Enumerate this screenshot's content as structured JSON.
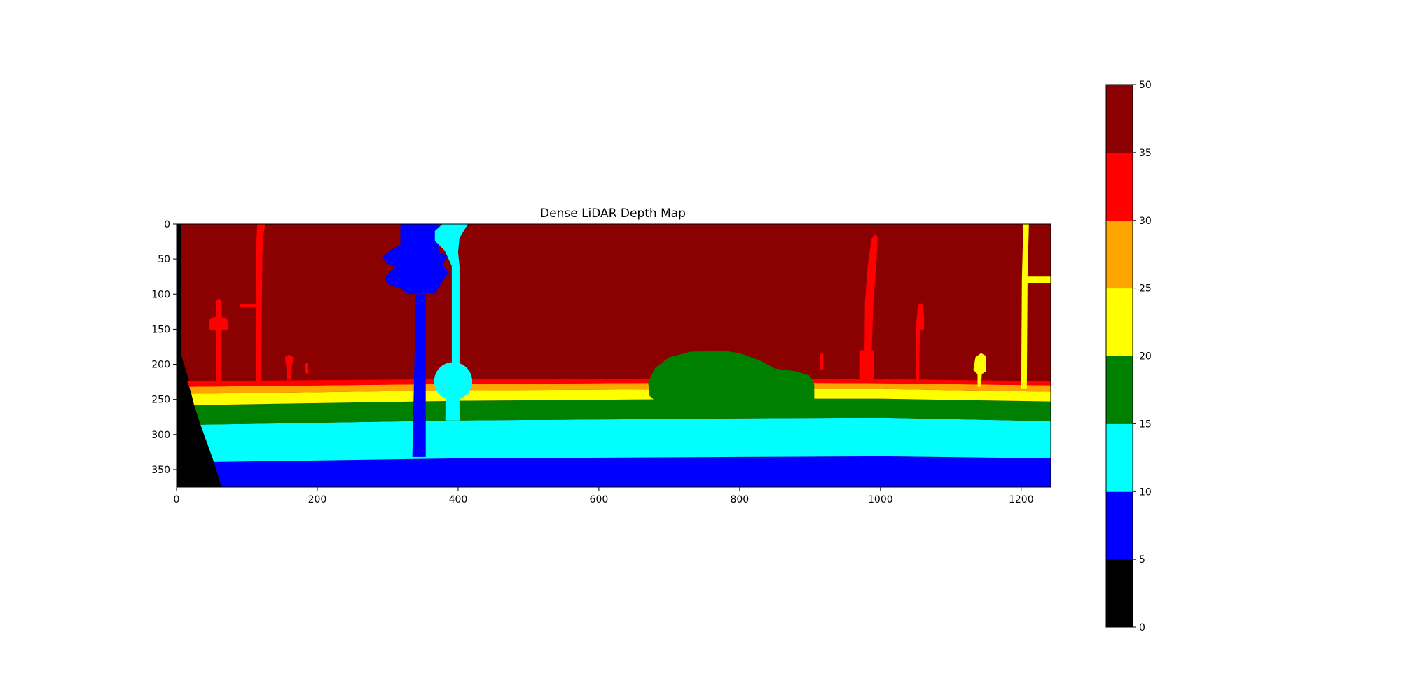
{
  "chart_data": {
    "type": "heatmap",
    "title": "Dense LiDAR Depth Map",
    "image_width": 1242,
    "image_height": 375,
    "xlim": [
      0,
      1242
    ],
    "ylim": [
      375,
      0
    ],
    "x_ticks": [
      0,
      200,
      400,
      600,
      800,
      1000,
      1200
    ],
    "y_ticks": [
      0,
      50,
      100,
      150,
      200,
      250,
      300,
      350
    ],
    "grid": false,
    "colorbar": {
      "boundaries": [
        0,
        5,
        10,
        15,
        20,
        25,
        30,
        35,
        50
      ],
      "tick_labels": [
        "0",
        "5",
        "10",
        "15",
        "20",
        "25",
        "30",
        "35",
        "50"
      ],
      "colors": [
        "#000000",
        "#0000ff",
        "#00ffff",
        "#008000",
        "#ffff00",
        "#ffa500",
        "#ff0000",
        "#8b0000"
      ]
    },
    "bands": [
      {
        "label": "ground 0-5",
        "color": "#000000",
        "polygon": [
          [
            0,
            0
          ],
          [
            6,
            0
          ],
          [
            6,
            185
          ],
          [
            64,
            375
          ],
          [
            0,
            375
          ]
        ]
      },
      {
        "label": "ground 5-10",
        "color": "#0000ff",
        "polygon": [
          [
            53,
            339
          ],
          [
            400,
            334
          ],
          [
            800,
            332
          ],
          [
            1000,
            331
          ],
          [
            1242,
            334
          ],
          [
            1242,
            375
          ],
          [
            64,
            375
          ]
        ]
      },
      {
        "label": "ground 10-15",
        "color": "#00ffff",
        "polygon": [
          [
            34,
            286
          ],
          [
            400,
            280
          ],
          [
            800,
            277
          ],
          [
            1000,
            276
          ],
          [
            1242,
            281
          ],
          [
            1242,
            334
          ],
          [
            1000,
            331
          ],
          [
            800,
            332
          ],
          [
            400,
            334
          ],
          [
            53,
            339
          ]
        ]
      },
      {
        "label": "ground 15-20",
        "color": "#008000",
        "polygon": [
          [
            25,
            258
          ],
          [
            400,
            252
          ],
          [
            800,
            249
          ],
          [
            1000,
            249
          ],
          [
            1242,
            253
          ],
          [
            1242,
            281
          ],
          [
            1000,
            276
          ],
          [
            800,
            277
          ],
          [
            400,
            280
          ],
          [
            34,
            286
          ]
        ]
      },
      {
        "label": "ground 20-25",
        "color": "#ffff00",
        "polygon": [
          [
            21,
            242
          ],
          [
            400,
            237
          ],
          [
            800,
            235
          ],
          [
            1000,
            235
          ],
          [
            1242,
            239
          ],
          [
            1242,
            253
          ],
          [
            1000,
            249
          ],
          [
            800,
            249
          ],
          [
            400,
            252
          ],
          [
            25,
            258
          ]
        ]
      },
      {
        "label": "ground 25-30",
        "color": "#ffa500",
        "polygon": [
          [
            18,
            232
          ],
          [
            400,
            228
          ],
          [
            800,
            226
          ],
          [
            1000,
            227
          ],
          [
            1242,
            230
          ],
          [
            1242,
            239
          ],
          [
            1000,
            235
          ],
          [
            800,
            235
          ],
          [
            400,
            237
          ],
          [
            21,
            242
          ]
        ]
      },
      {
        "label": "ground 30-35",
        "color": "#ff0000",
        "polygon": [
          [
            15,
            224
          ],
          [
            400,
            221
          ],
          [
            800,
            220
          ],
          [
            1000,
            221
          ],
          [
            1242,
            224
          ],
          [
            1242,
            230
          ],
          [
            1000,
            227
          ],
          [
            800,
            226
          ],
          [
            400,
            228
          ],
          [
            18,
            232
          ]
        ]
      }
    ],
    "objects": [
      {
        "label": "car",
        "color": "#008000",
        "polygon": [
          [
            672,
            245
          ],
          [
            670,
            225
          ],
          [
            680,
            205
          ],
          [
            700,
            190
          ],
          [
            730,
            182
          ],
          [
            780,
            181
          ],
          [
            800,
            184
          ],
          [
            830,
            195
          ],
          [
            850,
            206
          ],
          [
            880,
            210
          ],
          [
            900,
            216
          ],
          [
            906,
            228
          ],
          [
            906,
            251
          ],
          [
            880,
            253
          ],
          [
            740,
            254
          ],
          [
            680,
            252
          ]
        ]
      },
      {
        "label": "traffic light pole",
        "color": "#0000ff",
        "polygon": [
          [
            340,
            100
          ],
          [
            354,
            100
          ],
          [
            354,
            332
          ],
          [
            335,
            332
          ]
        ]
      },
      {
        "label": "traffic light head",
        "color": "#0000ff",
        "polygon": [
          [
            318,
            0
          ],
          [
            372,
            0
          ],
          [
            372,
            40
          ],
          [
            385,
            45
          ],
          [
            378,
            60
          ],
          [
            388,
            68
          ],
          [
            380,
            78
          ],
          [
            368,
            98
          ],
          [
            330,
            100
          ],
          [
            318,
            92
          ],
          [
            300,
            86
          ],
          [
            296,
            76
          ],
          [
            303,
            68
          ],
          [
            312,
            62
          ],
          [
            298,
            56
          ],
          [
            293,
            46
          ],
          [
            303,
            38
          ],
          [
            318,
            30
          ]
        ]
      },
      {
        "label": "sign pole",
        "color": "#00ffff",
        "polygon": [
          [
            391,
            0
          ],
          [
            414,
            0
          ],
          [
            402,
            20
          ],
          [
            400,
            40
          ],
          [
            402,
            60
          ],
          [
            402,
            280
          ],
          [
            382,
            280
          ],
          [
            382,
            236
          ],
          [
            391,
            236
          ],
          [
            391,
            60
          ],
          [
            381,
            38
          ],
          [
            367,
            24
          ],
          [
            367,
            10
          ],
          [
            378,
            0
          ]
        ]
      },
      {
        "label": "round sign",
        "color": "#00ffff",
        "circle": [
          393,
          224,
          27
        ]
      },
      {
        "label": "tall red pole",
        "color": "#ff0000",
        "polygon": [
          [
            115,
            0
          ],
          [
            126,
            0
          ],
          [
            124,
            12
          ],
          [
            122,
            40
          ],
          [
            120,
            228
          ],
          [
            113,
            228
          ],
          [
            113,
            40
          ],
          [
            114,
            10
          ]
        ]
      },
      {
        "label": "red pole bar",
        "color": "#ff0000",
        "polygon": [
          [
            90,
            114
          ],
          [
            115,
            114
          ],
          [
            115,
            118
          ],
          [
            90,
            118
          ]
        ]
      },
      {
        "label": "small red pole",
        "color": "#ff0000",
        "polygon": [
          [
            56,
            110
          ],
          [
            60,
            106
          ],
          [
            64,
            110
          ],
          [
            64,
            132
          ],
          [
            72,
            136
          ],
          [
            74,
            150
          ],
          [
            64,
            152
          ],
          [
            63,
            226
          ],
          [
            56,
            226
          ],
          [
            56,
            152
          ],
          [
            46,
            150
          ],
          [
            47,
            136
          ],
          [
            56,
            132
          ]
        ]
      },
      {
        "label": "red post",
        "color": "#ff0000",
        "polygon": [
          [
            154,
            190
          ],
          [
            160,
            186
          ],
          [
            166,
            190
          ],
          [
            164,
            204
          ],
          [
            163,
            222
          ],
          [
            157,
            222
          ],
          [
            156,
            204
          ]
        ]
      },
      {
        "label": "red bollard",
        "color": "#ff0000",
        "polygon": [
          [
            182,
            200
          ],
          [
            186,
            198
          ],
          [
            188,
            212
          ],
          [
            184,
            214
          ]
        ]
      },
      {
        "label": "red pole right",
        "color": "#ff0000",
        "polygon": [
          [
            987,
            22
          ],
          [
            992,
            14
          ],
          [
            996,
            18
          ],
          [
            994,
            60
          ],
          [
            990,
            110
          ],
          [
            986,
            226
          ],
          [
            977,
            226
          ],
          [
            978,
            110
          ],
          [
            982,
            60
          ]
        ]
      },
      {
        "label": "red posts right",
        "color": "#ff0000",
        "polygon": [
          [
            970,
            180
          ],
          [
            990,
            180
          ],
          [
            991,
            222
          ],
          [
            970,
            222
          ]
        ]
      },
      {
        "label": "red sign right",
        "color": "#ff0000",
        "polygon": [
          [
            1053,
            115
          ],
          [
            1060,
            113
          ],
          [
            1062,
            130
          ],
          [
            1062,
            150
          ],
          [
            1056,
            152
          ],
          [
            1055,
            222
          ],
          [
            1050,
            222
          ],
          [
            1050,
            150
          ],
          [
            1052,
            130
          ]
        ]
      },
      {
        "label": "red small post",
        "color": "#ff0000",
        "polygon": [
          [
            914,
            185
          ],
          [
            919,
            185
          ],
          [
            919,
            208
          ],
          [
            914,
            208
          ]
        ]
      },
      {
        "label": "yellow pole",
        "color": "#ffff00",
        "polygon": [
          [
            1203,
            0
          ],
          [
            1211,
            0
          ],
          [
            1209,
            75
          ],
          [
            1242,
            75
          ],
          [
            1242,
            84
          ],
          [
            1209,
            84
          ],
          [
            1208,
            235
          ],
          [
            1200,
            235
          ],
          [
            1201,
            80
          ]
        ]
      },
      {
        "label": "yellow sign",
        "color": "#ffff00",
        "polygon": [
          [
            1135,
            190
          ],
          [
            1143,
            184
          ],
          [
            1150,
            188
          ],
          [
            1150,
            210
          ],
          [
            1144,
            214
          ],
          [
            1143,
            232
          ],
          [
            1138,
            232
          ],
          [
            1138,
            214
          ],
          [
            1132,
            208
          ]
        ]
      }
    ]
  }
}
